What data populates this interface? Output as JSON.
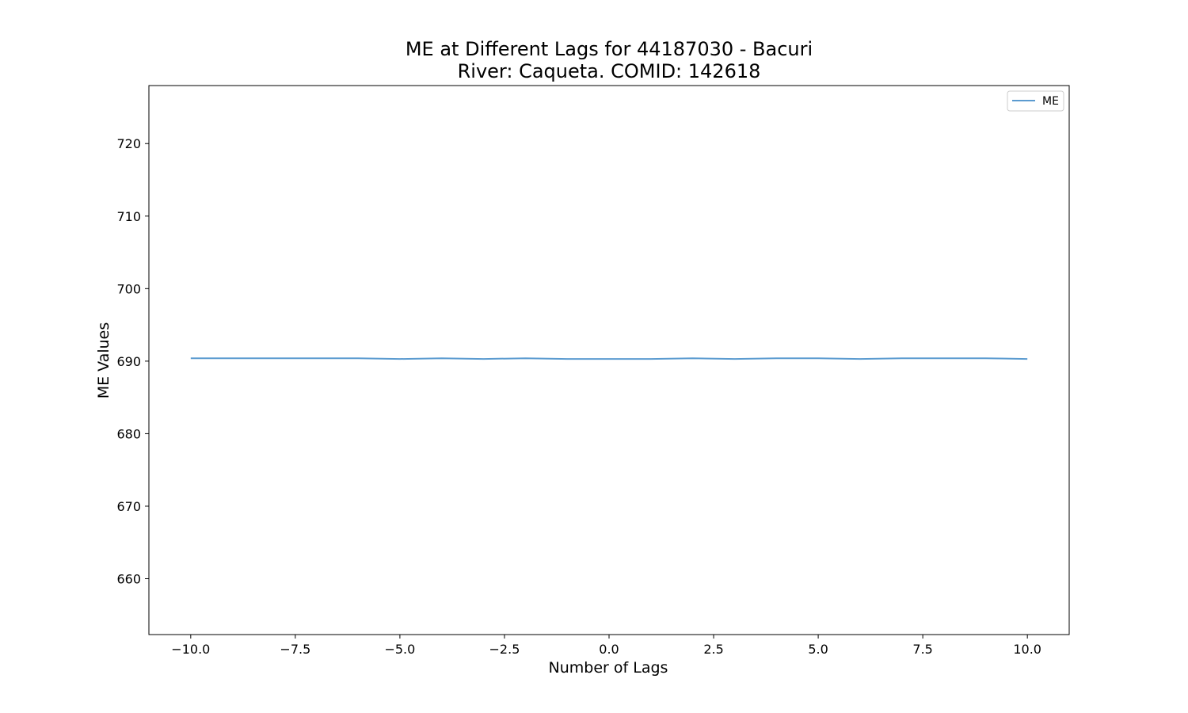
{
  "chart_data": {
    "type": "line",
    "title_lines": [
      "ME at Different Lags for 44187030 - Bacuri",
      "River: Caqueta. COMID: 142618"
    ],
    "xlabel": "Number of Lags",
    "ylabel": "ME Values",
    "xlim": [
      -11,
      11
    ],
    "ylim": [
      652.3,
      728.0
    ],
    "xticks": [
      -10.0,
      -7.5,
      -5.0,
      -2.5,
      0.0,
      2.5,
      5.0,
      7.5,
      10.0
    ],
    "xtick_labels": [
      "−10.0",
      "−7.5",
      "−5.0",
      "−2.5",
      "0.0",
      "2.5",
      "5.0",
      "7.5",
      "10.0"
    ],
    "yticks": [
      660,
      670,
      680,
      690,
      700,
      710,
      720
    ],
    "ytick_labels": [
      "660",
      "670",
      "680",
      "690",
      "700",
      "710",
      "720"
    ],
    "grid": false,
    "legend_position": "top-right",
    "series": [
      {
        "name": "ME",
        "color": "#5b9bd0",
        "x": [
          -10,
          -9,
          -8,
          -7,
          -6,
          -5,
          -4,
          -3,
          -2,
          -1,
          0,
          1,
          2,
          3,
          4,
          5,
          6,
          7,
          8,
          9,
          10
        ],
        "y": [
          690.4,
          690.4,
          690.4,
          690.4,
          690.4,
          690.3,
          690.4,
          690.3,
          690.4,
          690.3,
          690.3,
          690.3,
          690.4,
          690.3,
          690.4,
          690.4,
          690.3,
          690.4,
          690.4,
          690.4,
          690.3
        ]
      }
    ]
  }
}
